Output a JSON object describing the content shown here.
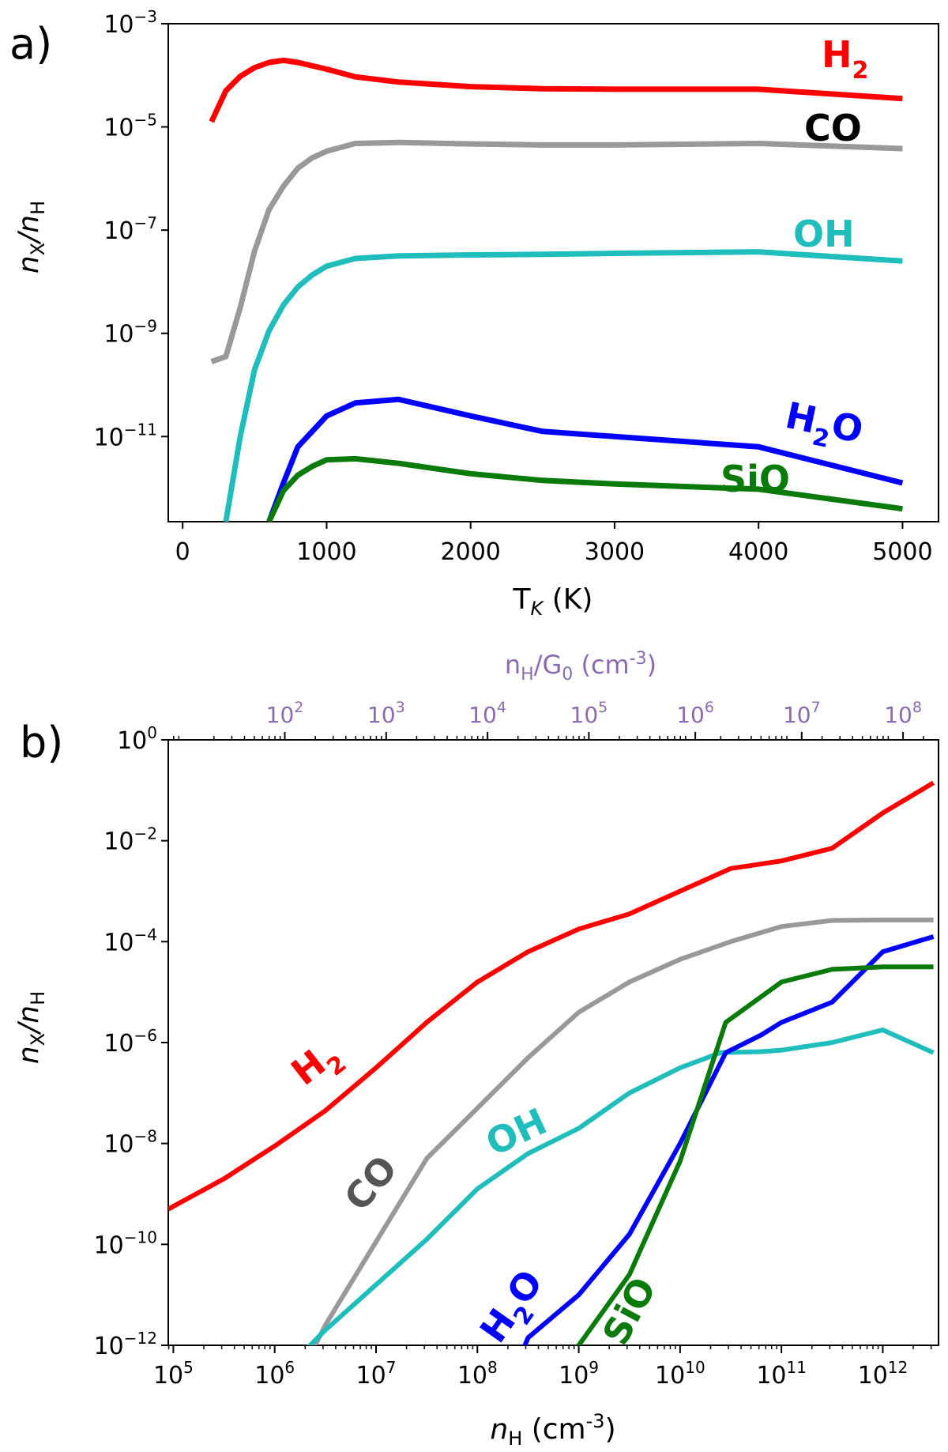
{
  "chart_data": [
    {
      "type": "line",
      "panel": "a)",
      "xlabel": "T",
      "xlabel_sub": "K",
      "xlabel_unit": " (K)",
      "ylabel": "n",
      "ylabel_sub1": "X",
      "ylabel_mid": "/n",
      "ylabel_sub2": "H",
      "xscale": "linear",
      "yscale": "log",
      "xlim": [
        -100,
        5250
      ],
      "ylim": [
        -12.65,
        -3
      ],
      "xticks": [
        0,
        1000,
        2000,
        3000,
        4000,
        5000
      ],
      "xtick_labels": [
        "0",
        "1000",
        "2000",
        "3000",
        "4000",
        "5000"
      ],
      "yticks": [
        -3,
        -5,
        -7,
        -9,
        -11
      ],
      "ytick_labels": [
        {
          "base": "10",
          "exp": "−3"
        },
        {
          "base": "10",
          "exp": "−5"
        },
        {
          "base": "10",
          "exp": "−7"
        },
        {
          "base": "10",
          "exp": "−9"
        },
        {
          "base": "10",
          "exp": "−11"
        }
      ],
      "series": [
        {
          "name": "H2",
          "label": "H",
          "label_sub": "2",
          "color": "#ff0000",
          "x": [
            200,
            300,
            400,
            500,
            600,
            700,
            800,
            1000,
            1200,
            1500,
            2000,
            2500,
            3000,
            4000,
            5000
          ],
          "y": [
            -4.9,
            -4.3,
            -4.02,
            -3.85,
            -3.75,
            -3.71,
            -3.75,
            -3.88,
            -4.03,
            -4.13,
            -4.22,
            -4.26,
            -4.27,
            -4.27,
            -4.45
          ]
        },
        {
          "name": "CO",
          "label": "CO",
          "label_sub": "",
          "color": "#999999",
          "x": [
            200,
            300,
            400,
            500,
            600,
            700,
            800,
            900,
            1000,
            1200,
            1500,
            2000,
            2500,
            3000,
            4000,
            5000
          ],
          "y": [
            -9.55,
            -9.45,
            -8.5,
            -7.4,
            -6.6,
            -6.15,
            -5.8,
            -5.6,
            -5.47,
            -5.32,
            -5.3,
            -5.33,
            -5.35,
            -5.35,
            -5.32,
            -5.42
          ]
        },
        {
          "name": "OH",
          "label": "OH",
          "label_sub": "",
          "color": "#20bdbd",
          "x": [
            300,
            400,
            500,
            600,
            700,
            800,
            900,
            1000,
            1200,
            1500,
            2000,
            2500,
            3000,
            4000,
            5000
          ],
          "y": [
            -12.65,
            -11.0,
            -9.7,
            -8.95,
            -8.45,
            -8.1,
            -7.87,
            -7.7,
            -7.55,
            -7.5,
            -7.48,
            -7.47,
            -7.45,
            -7.42,
            -7.6
          ]
        },
        {
          "name": "H2O",
          "label": "H",
          "label_sub": "2",
          "label_tail": "O",
          "color": "#0000ff",
          "x": [
            600,
            700,
            800,
            900,
            1000,
            1200,
            1500,
            2000,
            2500,
            3000,
            4000,
            5000
          ],
          "y": [
            -12.65,
            -11.9,
            -11.2,
            -10.9,
            -10.6,
            -10.35,
            -10.28,
            -10.6,
            -10.9,
            -11.0,
            -11.2,
            -11.9
          ]
        },
        {
          "name": "SiO",
          "label": "SiO",
          "label_sub": "",
          "color": "#0a7a0a",
          "x": [
            600,
            700,
            800,
            900,
            1000,
            1200,
            1500,
            2000,
            2500,
            3000,
            4000,
            5000
          ],
          "y": [
            -12.65,
            -12.05,
            -11.75,
            -11.58,
            -11.45,
            -11.43,
            -11.52,
            -11.72,
            -11.85,
            -11.92,
            -12.02,
            -12.4
          ]
        }
      ]
    },
    {
      "type": "line",
      "panel": "b)",
      "xlabel": "n",
      "xlabel_sub": "H",
      "xlabel_unit": " (cm",
      "xlabel_sup": "-3",
      "xlabel_close": ")",
      "ylabel": "n",
      "ylabel_sub1": "X",
      "ylabel_mid": "/n",
      "ylabel_sub2": "H",
      "top_xlabel": "n",
      "top_xlabel_sub1": "H",
      "top_xlabel_mid": "/G",
      "top_xlabel_sub2": "0",
      "top_xlabel_unit": " (cm",
      "top_xlabel_sup": "-3",
      "top_xlabel_close": ")",
      "xscale": "log",
      "yscale": "log",
      "xlim": [
        4.95,
        12.55
      ],
      "ylim": [
        -12,
        0
      ],
      "xticks": [
        5,
        6,
        7,
        8,
        9,
        10,
        11,
        12
      ],
      "xtick_labels": [
        {
          "base": "10",
          "exp": "5"
        },
        {
          "base": "10",
          "exp": "6"
        },
        {
          "base": "10",
          "exp": "7"
        },
        {
          "base": "10",
          "exp": "8"
        },
        {
          "base": "10",
          "exp": "9"
        },
        {
          "base": "10",
          "exp": "10"
        },
        {
          "base": "10",
          "exp": "11"
        },
        {
          "base": "10",
          "exp": "12"
        }
      ],
      "yticks": [
        0,
        -2,
        -4,
        -6,
        -8,
        -10,
        -12
      ],
      "ytick_labels": [
        {
          "base": "10",
          "exp": "0"
        },
        {
          "base": "10",
          "exp": "−2"
        },
        {
          "base": "10",
          "exp": "−4"
        },
        {
          "base": "10",
          "exp": "−6"
        },
        {
          "base": "10",
          "exp": "−8"
        },
        {
          "base": "10",
          "exp": "−10"
        },
        {
          "base": "10",
          "exp": "−12"
        }
      ],
      "top_ticks_pos": [
        6.1,
        7.1,
        8.1,
        9.1,
        10.15,
        11.2,
        12.2
      ],
      "top_tick_labels": [
        {
          "base": "10",
          "exp": "2"
        },
        {
          "base": "10",
          "exp": "3"
        },
        {
          "base": "10",
          "exp": "4"
        },
        {
          "base": "10",
          "exp": "5"
        },
        {
          "base": "10",
          "exp": "6"
        },
        {
          "base": "10",
          "exp": "7"
        },
        {
          "base": "10",
          "exp": "8"
        }
      ],
      "series": [
        {
          "name": "H2",
          "label": "H",
          "label_sub": "2",
          "color": "#ff0000",
          "x": [
            4.95,
            5.5,
            6,
            6.5,
            7,
            7.5,
            8,
            8.5,
            9,
            9.5,
            10,
            10.5,
            11,
            11.5,
            12,
            12.5
          ],
          "y": [
            -9.3,
            -8.7,
            -8.05,
            -7.35,
            -6.5,
            -5.6,
            -4.8,
            -4.2,
            -3.75,
            -3.45,
            -3.0,
            -2.55,
            -2.4,
            -2.15,
            -1.45,
            -0.85
          ]
        },
        {
          "name": "CO",
          "label": "CO",
          "label_sub": "",
          "color": "#999999",
          "x": [
            6.3,
            6.5,
            7,
            7.5,
            8,
            8.5,
            9,
            9.5,
            10,
            10.5,
            11,
            11.5,
            12,
            12.5
          ],
          "y": [
            -12.4,
            -11.6,
            -9.95,
            -8.3,
            -7.3,
            -6.3,
            -5.4,
            -4.8,
            -4.35,
            -4.0,
            -3.7,
            -3.58,
            -3.57,
            -3.57
          ]
        },
        {
          "name": "OH",
          "label": "OH",
          "label_sub": "",
          "color": "#20bdbd",
          "x": [
            6.3,
            6.5,
            7,
            7.5,
            8,
            8.5,
            9,
            9.5,
            10,
            10.4,
            10.8,
            11,
            11.5,
            12,
            12.5
          ],
          "y": [
            -12.1,
            -11.7,
            -10.8,
            -9.9,
            -8.9,
            -8.2,
            -7.7,
            -7.0,
            -6.5,
            -6.2,
            -6.18,
            -6.15,
            -6.0,
            -5.75,
            -6.2
          ]
        },
        {
          "name": "H2O",
          "label": "H",
          "label_sub": "2",
          "label_tail": "O",
          "color": "#0000ff",
          "x": [
            8.45,
            8.5,
            9,
            9.5,
            10,
            10.45,
            10.8,
            11,
            11.5,
            12,
            12.5
          ],
          "y": [
            -12.1,
            -11.85,
            -11.0,
            -9.8,
            -8.0,
            -6.2,
            -5.85,
            -5.6,
            -5.2,
            -4.2,
            -3.9
          ]
        },
        {
          "name": "SiO",
          "label": "SiO",
          "label_sub": "",
          "color": "#0a7a0a",
          "x": [
            8.7,
            9,
            9.5,
            10,
            10.45,
            11,
            11.5,
            12,
            12.5
          ],
          "y": [
            -12.4,
            -12.0,
            -10.6,
            -8.35,
            -5.6,
            -4.8,
            -4.55,
            -4.5,
            -4.5
          ]
        }
      ]
    }
  ]
}
